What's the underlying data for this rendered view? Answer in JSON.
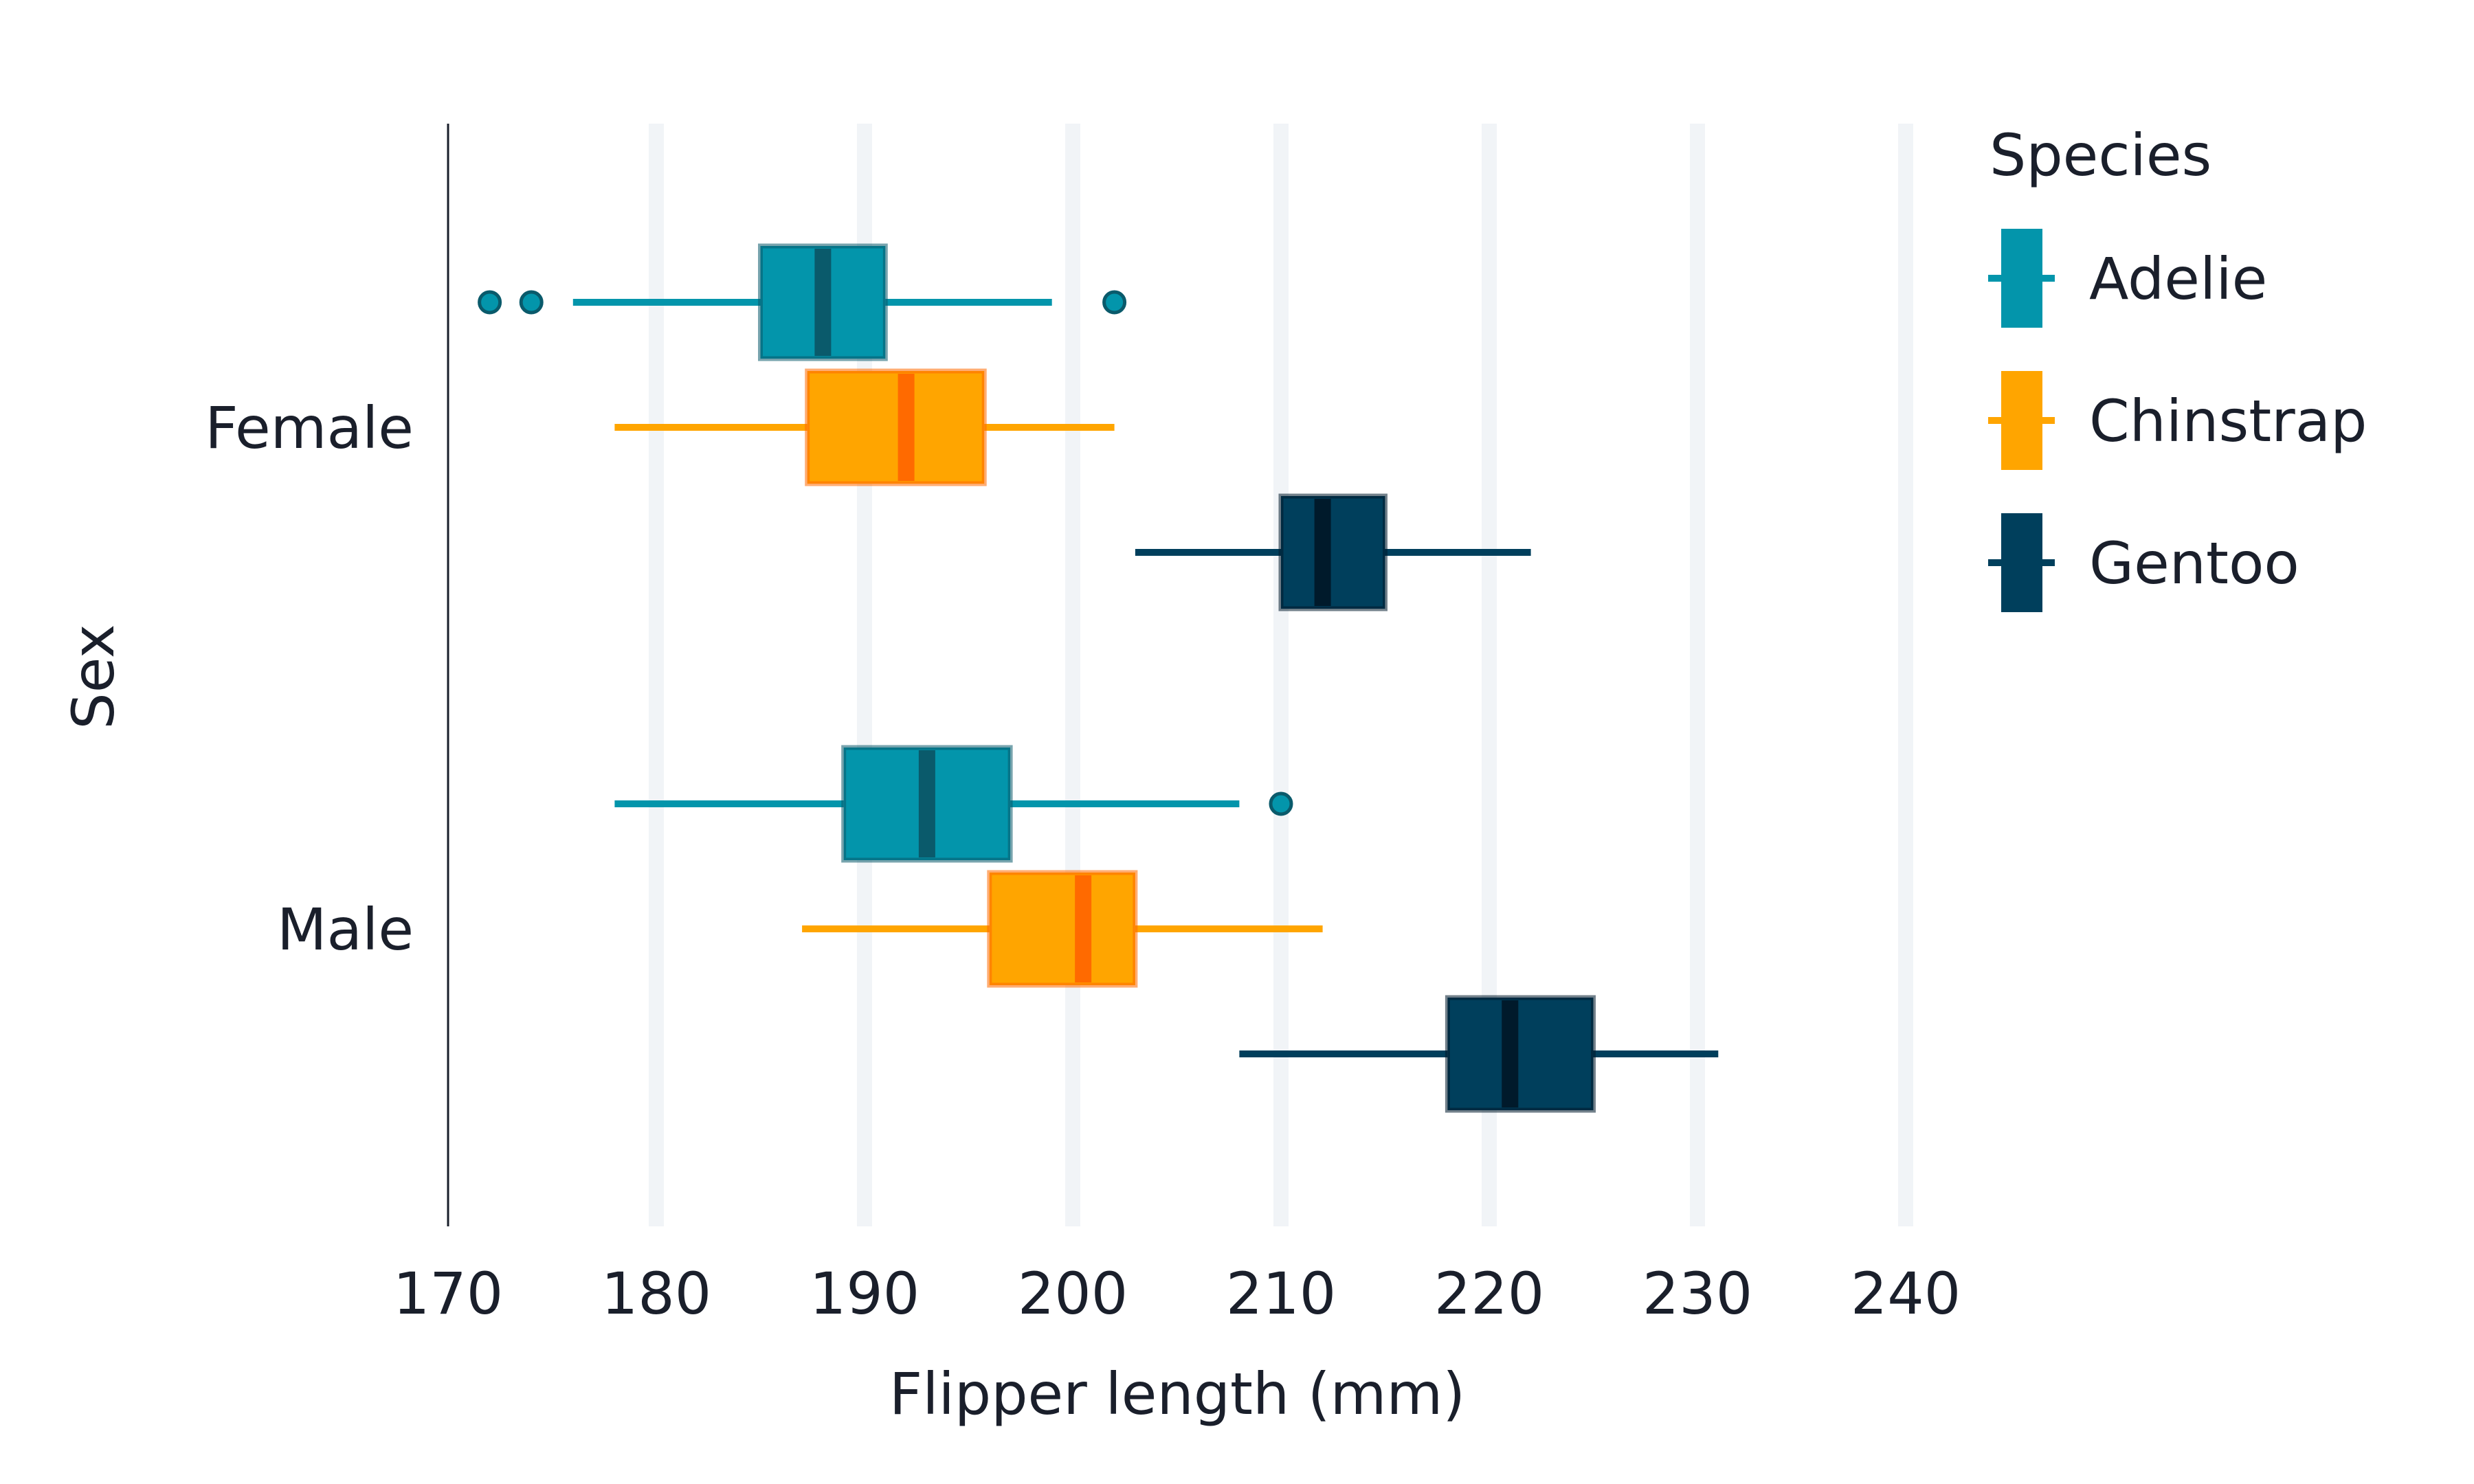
{
  "chart_data": {
    "type": "boxplot",
    "orientation": "horizontal",
    "xlabel": "Flipper length (mm)",
    "ylabel": "Sex",
    "xlim": [
      170,
      240
    ],
    "xticks": [
      170,
      180,
      190,
      200,
      210,
      220,
      230,
      240
    ],
    "categories": [
      "Female",
      "Male"
    ],
    "grid": "vertical",
    "legend": {
      "title": "Species",
      "placement": "right"
    },
    "series": [
      {
        "name": "Adelie",
        "color": "#0395ab",
        "median_color": "#0a5a6b",
        "boxes": [
          {
            "category": "Female",
            "whisker_low": 176,
            "q1": 185,
            "median": 188,
            "q3": 191,
            "whisker_high": 199,
            "outliers": [
              172,
              174,
              202
            ]
          },
          {
            "category": "Male",
            "whisker_low": 178,
            "q1": 189,
            "median": 193,
            "q3": 197,
            "whisker_high": 208,
            "outliers": [
              210
            ]
          }
        ]
      },
      {
        "name": "Chinstrap",
        "color": "#ffa500",
        "median_color": "#ff6a00",
        "boxes": [
          {
            "category": "Female",
            "whisker_low": 178,
            "q1": 187.25,
            "median": 192,
            "q3": 195.75,
            "whisker_high": 202,
            "outliers": []
          },
          {
            "category": "Male",
            "whisker_low": 187,
            "q1": 196,
            "median": 200.5,
            "q3": 203,
            "whisker_high": 212,
            "outliers": []
          }
        ]
      },
      {
        "name": "Gentoo",
        "color": "#003f5c",
        "median_color": "#001a2b",
        "boxes": [
          {
            "category": "Female",
            "whisker_low": 203,
            "q1": 210,
            "median": 212,
            "q3": 215,
            "whisker_high": 222,
            "outliers": []
          },
          {
            "category": "Male",
            "whisker_low": 208,
            "q1": 218,
            "median": 221,
            "q3": 225,
            "whisker_high": 231,
            "outliers": []
          }
        ]
      }
    ]
  }
}
